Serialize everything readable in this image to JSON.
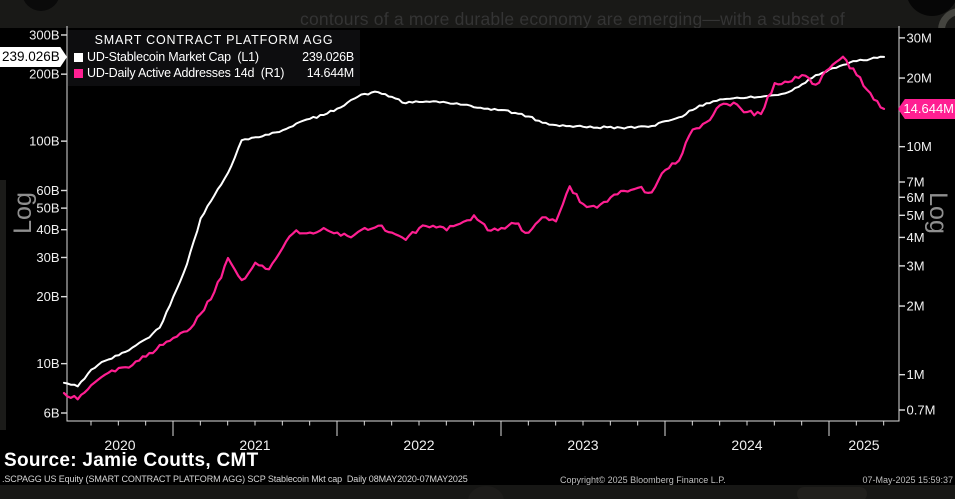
{
  "page": {
    "top_text": "contours of a more durable economy are emerging—with a subset of",
    "source_line": "Source: Jamie Coutts, CMT",
    "footer_left": ".SCPAGG US Equity (SMART CONTRACT PLATFORM AGG) SCP Stablecoin Mkt cap  Daily 08MAY2020-07MAY2025",
    "footer_copyright": "Copyright© 2025 Bloomberg Finance L.P.",
    "footer_timestamp": "07-May-2025 15:59:37"
  },
  "chart_data": {
    "type": "line",
    "title": "SMART CONTRACT PLATFORM AGG",
    "x_range": {
      "start": "2020-05",
      "end": "2025-05",
      "step": "month"
    },
    "x_tick_labels": [
      "2020",
      "2021",
      "2022",
      "2023",
      "2024",
      "2025"
    ],
    "left_axis": {
      "scale": "log",
      "scale_label": "Log",
      "unit": "B (USD billions)",
      "ticks": [
        {
          "label": "300B",
          "value": 300
        },
        {
          "label": "200B",
          "value": 200
        },
        {
          "label": "100B",
          "value": 100
        },
        {
          "label": "60B",
          "value": 60
        },
        {
          "label": "50B",
          "value": 50
        },
        {
          "label": "40B",
          "value": 40
        },
        {
          "label": "30B",
          "value": 30
        },
        {
          "label": "20B",
          "value": 20
        },
        {
          "label": "10B",
          "value": 10
        },
        {
          "label": "6B",
          "value": 6
        }
      ]
    },
    "right_axis": {
      "scale": "log",
      "scale_label": "Log",
      "unit": "M (millions of addresses)",
      "ticks": [
        {
          "label": "30M",
          "value": 30
        },
        {
          "label": "20M",
          "value": 20
        },
        {
          "label": "10M",
          "value": 10
        },
        {
          "label": "7M",
          "value": 7
        },
        {
          "label": "6M",
          "value": 6
        },
        {
          "label": "5M",
          "value": 5
        },
        {
          "label": "4M",
          "value": 4
        },
        {
          "label": "3M",
          "value": 3
        },
        {
          "label": "2M",
          "value": 2
        },
        {
          "label": "1M",
          "value": 1
        },
        {
          "label": "0.7M",
          "value": 0.7
        }
      ]
    },
    "series": [
      {
        "name": "UD-Stablecoin Market Cap",
        "axis": "L1",
        "color": "#ffffff",
        "legend_label": "UD-Stablecoin Market Cap  (L1)",
        "legend_value": "239.026B",
        "last_value_label": "239.026B",
        "unit": "billions USD",
        "values": [
          8.2,
          7.9,
          9.4,
          10.3,
          10.9,
          11.8,
          12.9,
          14.5,
          20,
          28,
          45,
          57,
          72,
          101,
          104,
          107,
          112,
          120,
          126,
          131,
          140,
          153,
          163,
          166,
          158,
          148,
          150,
          151,
          149,
          146,
          142,
          140,
          138,
          134,
          129,
          121,
          118,
          117,
          116,
          115,
          116,
          114,
          116,
          117,
          123,
          128,
          138,
          148,
          154,
          156,
          157,
          158,
          161,
          166,
          180,
          198,
          210,
          220,
          229,
          234,
          239.026
        ]
      },
      {
        "name": "UD-Daily Active Addresses 14d",
        "axis": "R1",
        "color": "#ff1f92",
        "legend_label": "UD-Daily Active Addresses 14d  (R1)",
        "legend_value": "14.644M",
        "last_value_label": "14.644M",
        "unit": "millions",
        "values": [
          0.83,
          0.78,
          0.9,
          1.0,
          1.07,
          1.1,
          1.2,
          1.35,
          1.45,
          1.55,
          1.85,
          2.3,
          3.25,
          2.6,
          3.1,
          2.9,
          3.6,
          4.3,
          4.2,
          4.4,
          4.2,
          4.0,
          4.4,
          4.5,
          4.2,
          3.9,
          4.4,
          4.5,
          4.3,
          4.6,
          5.0,
          4.3,
          4.4,
          4.6,
          4.2,
          4.9,
          4.7,
          6.7,
          5.6,
          5.4,
          6.0,
          6.4,
          6.6,
          6.3,
          7.9,
          8.7,
          11.9,
          12.8,
          15.2,
          15.6,
          14.2,
          13.9,
          19.0,
          19.2,
          20.6,
          18.7,
          22.0,
          24.8,
          20.6,
          17.2,
          14.644
        ]
      }
    ],
    "legend_position": "top-left",
    "grid": false,
    "background": "#000000"
  }
}
